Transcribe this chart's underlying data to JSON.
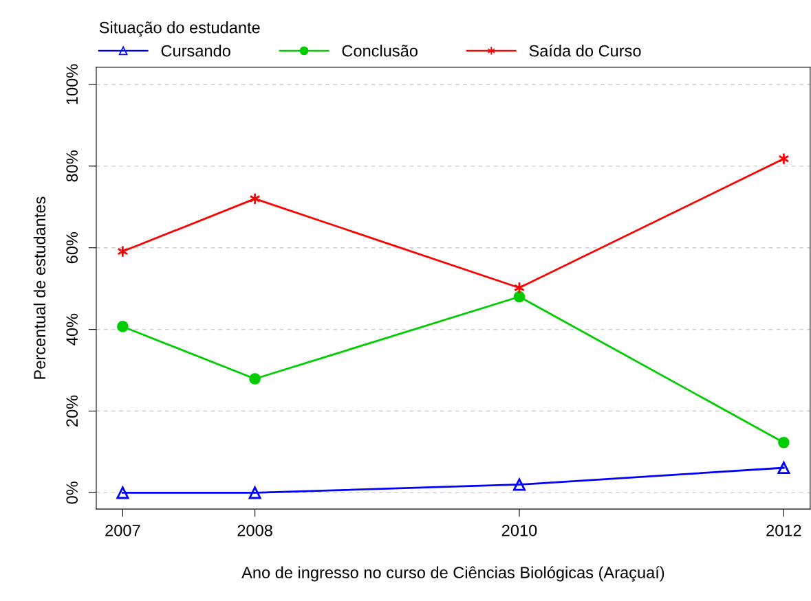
{
  "chart_data": {
    "type": "line",
    "xlabel": "Ano de ingresso no curso de Ciências Biológicas (Araçuaí)",
    "ylabel": "Percentual de estudantes",
    "legend_title": "Situação do estudante",
    "legend": "top",
    "x": [
      2007,
      2008,
      2010,
      2012
    ],
    "series": [
      {
        "name": "Cursando",
        "color": "#0000ff",
        "marker": "triangle",
        "values": [
          0,
          0,
          2.0,
          6.1
        ]
      },
      {
        "name": "Conclusão",
        "color": "#00cd00",
        "marker": "circle",
        "values": [
          40.7,
          27.9,
          48.0,
          12.3
        ]
      },
      {
        "name": "Saída do Curso",
        "color": "#ff0000",
        "marker": "cross",
        "values": [
          59.1,
          72.0,
          50.2,
          81.8
        ]
      }
    ],
    "xlim": [
      2006.8,
      2012.2
    ],
    "ylim": [
      -4,
      104.2
    ],
    "xticks": [
      2007,
      2008,
      2010,
      2012
    ],
    "yticks": [
      {
        "value": 0,
        "label": "0%"
      },
      {
        "value": 20,
        "label": "20%"
      },
      {
        "value": 40,
        "label": "40%"
      },
      {
        "value": 60,
        "label": "60%"
      },
      {
        "value": 80,
        "label": "80%"
      },
      {
        "value": 100,
        "label": "100%"
      }
    ],
    "grid": "y",
    "line_style": "solid"
  }
}
